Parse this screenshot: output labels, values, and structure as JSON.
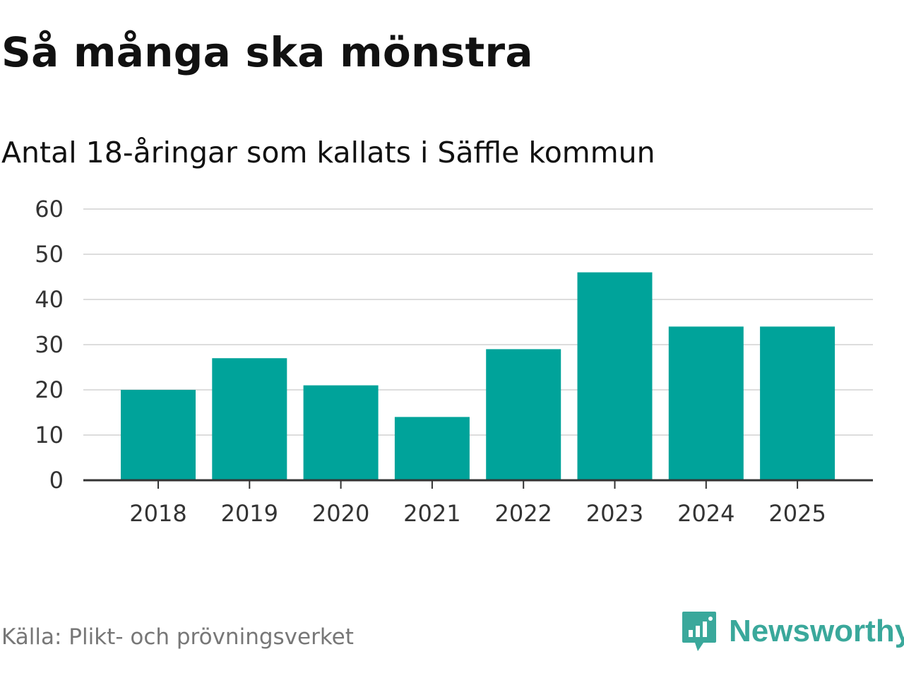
{
  "chart_data": {
    "type": "bar",
    "title": "Så många ska mönstra",
    "subtitle": "Antal 18-åringar som kallats i Säffle kommun",
    "categories": [
      "2018",
      "2019",
      "2020",
      "2021",
      "2022",
      "2023",
      "2024",
      "2025"
    ],
    "values": [
      20,
      27,
      21,
      14,
      29,
      46,
      34,
      34
    ],
    "ylim": [
      0,
      60
    ],
    "yticks": [
      "0",
      "10",
      "20",
      "30",
      "40",
      "50",
      "60"
    ],
    "xlabel": "",
    "ylabel": "",
    "grid": true,
    "bar_color": "#00a39a",
    "grid_color": "#dddddd",
    "axis_color": "#333333"
  },
  "footer": {
    "source": "Källa: Plikt- och prövningsverket",
    "brand": "Newsworthy",
    "brand_color": "#3aa89b"
  }
}
